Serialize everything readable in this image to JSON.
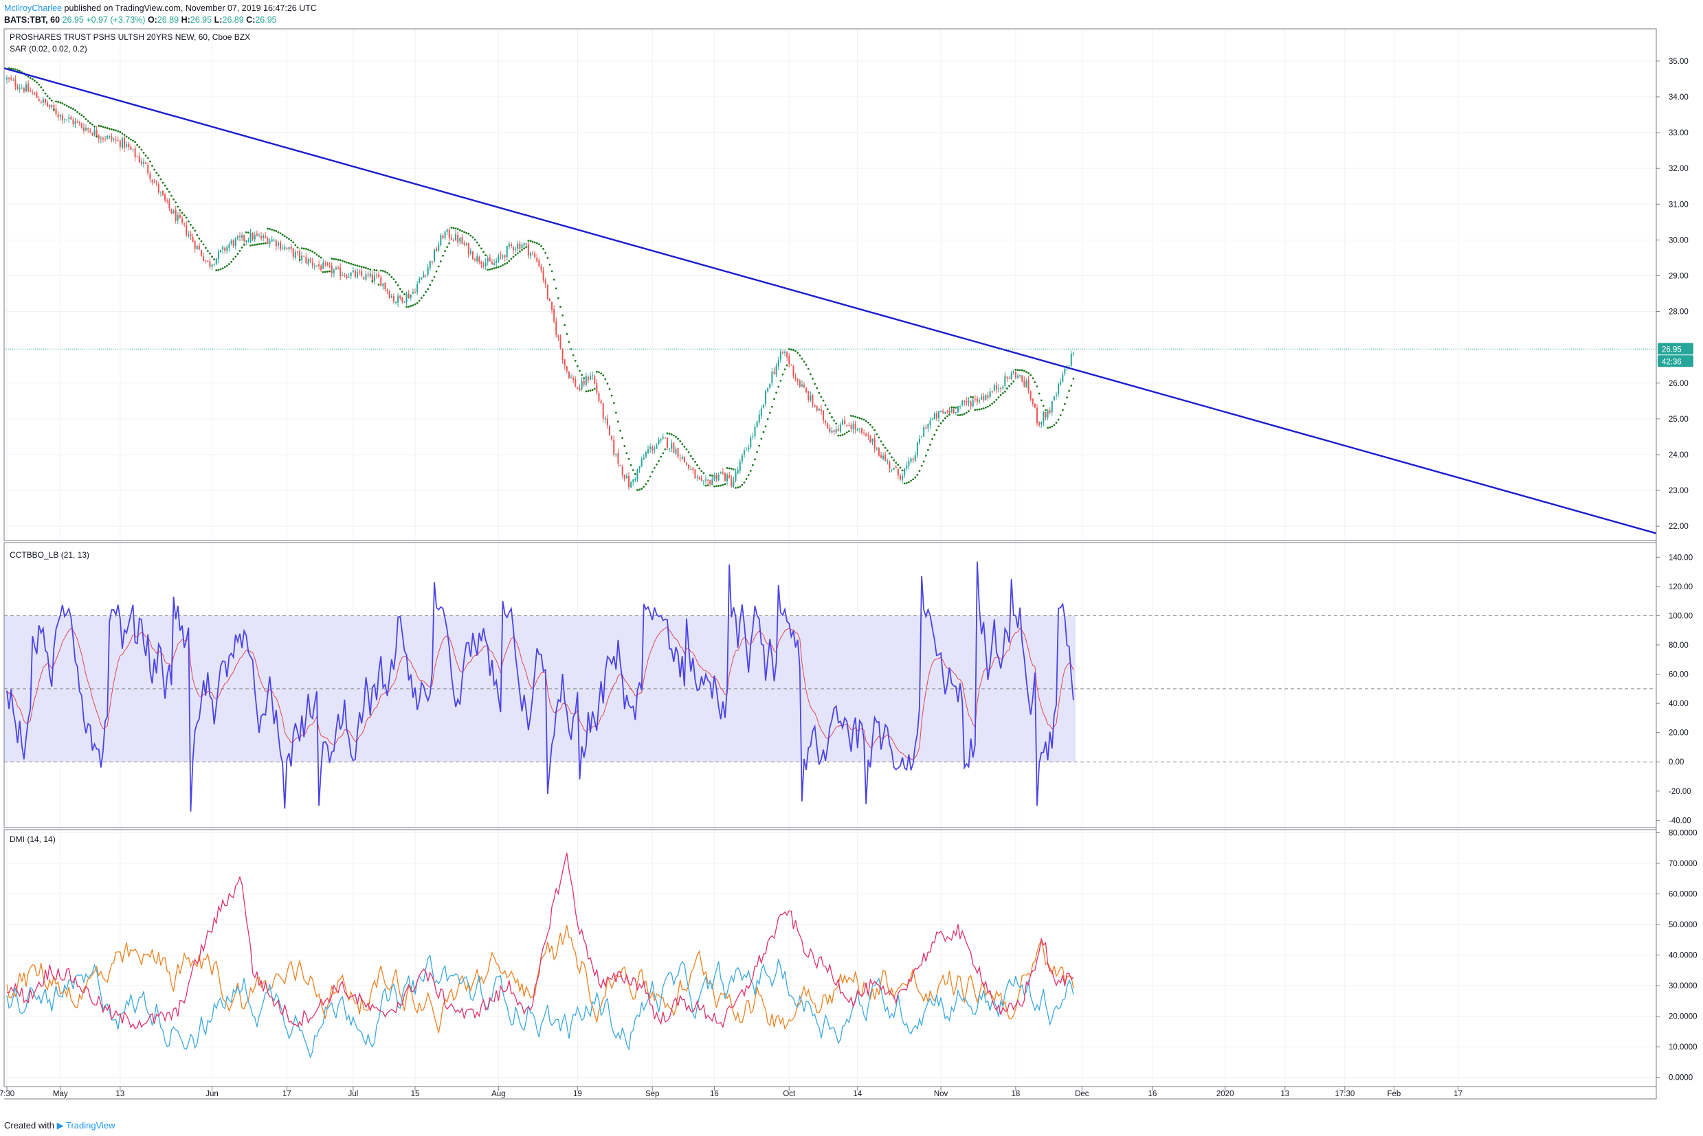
{
  "header": {
    "author": "McIlroyCharlee",
    "published_text": "published on TradingView.com, November 07, 2019 16:47:26 UTC",
    "symbol": "BATS:TBT, 60",
    "last": "26.95",
    "change": "+0.97 (+3.73%)",
    "open_label": "O:",
    "open": "26.89",
    "high_label": "H:",
    "high": "26.95",
    "low_label": "L:",
    "low": "26.89",
    "close_label": "C:",
    "close": "26.95"
  },
  "footer": {
    "created_with": "Created with",
    "brand": "TradingView"
  },
  "colors": {
    "up": "#26a69a",
    "down": "#ef5350",
    "sar": "#1b7a1b",
    "trendline": "#1a1ccf",
    "cc_main": "#4b43e8",
    "cc_signal": "#e04850",
    "band_fill": "#e4e4fb",
    "dmi_plus": "#3aa8e0",
    "dmi_minus": "#f08020",
    "adx": "#e0306a",
    "price_label_bg": "#26a69a",
    "grid": "#eef1f6",
    "border": "#787b86"
  },
  "chart_data": [
    {
      "type": "candlestick",
      "title": "PROSHARES TRUST PSHS ULTSH 20YRS NEW, 60, Cboe BZX",
      "indicator_label": "SAR (0.02, 0.02, 0.2)",
      "price_anchors": [
        [
          0,
          34.5
        ],
        [
          10,
          34.2
        ],
        [
          25,
          33.5
        ],
        [
          35,
          33.2
        ],
        [
          45,
          32.9
        ],
        [
          55,
          32.7
        ],
        [
          65,
          32.1
        ],
        [
          75,
          31.0
        ],
        [
          85,
          30.2
        ],
        [
          95,
          29.3
        ],
        [
          105,
          29.9
        ],
        [
          115,
          30.1
        ],
        [
          125,
          30.0
        ],
        [
          135,
          29.6
        ],
        [
          145,
          29.3
        ],
        [
          155,
          29.1
        ],
        [
          165,
          29.0
        ],
        [
          175,
          28.9
        ],
        [
          182,
          28.3
        ],
        [
          190,
          28.5
        ],
        [
          198,
          29.3
        ],
        [
          205,
          30.2
        ],
        [
          212,
          30.0
        ],
        [
          220,
          29.5
        ],
        [
          228,
          29.3
        ],
        [
          236,
          29.8
        ],
        [
          242,
          29.9
        ],
        [
          250,
          29.3
        ],
        [
          256,
          27.8
        ],
        [
          262,
          26.4
        ],
        [
          268,
          25.8
        ],
        [
          274,
          26.3
        ],
        [
          279,
          25.2
        ],
        [
          285,
          24.0
        ],
        [
          292,
          23.1
        ],
        [
          300,
          24.1
        ],
        [
          308,
          24.4
        ],
        [
          314,
          24.1
        ],
        [
          320,
          23.6
        ],
        [
          326,
          23.1
        ],
        [
          334,
          23.5
        ],
        [
          340,
          23.2
        ],
        [
          346,
          24.1
        ],
        [
          352,
          24.9
        ],
        [
          358,
          26.2
        ],
        [
          364,
          26.9
        ],
        [
          370,
          26.1
        ],
        [
          378,
          25.4
        ],
        [
          386,
          24.7
        ],
        [
          394,
          24.9
        ],
        [
          400,
          24.6
        ],
        [
          406,
          24.3
        ],
        [
          412,
          23.8
        ],
        [
          418,
          23.4
        ],
        [
          424,
          23.8
        ],
        [
          430,
          24.8
        ],
        [
          436,
          25.1
        ],
        [
          444,
          25.3
        ],
        [
          452,
          25.5
        ],
        [
          460,
          25.7
        ],
        [
          466,
          26.0
        ],
        [
          472,
          26.3
        ],
        [
          478,
          25.9
        ],
        [
          483,
          24.9
        ],
        [
          489,
          25.3
        ],
        [
          494,
          26.1
        ],
        [
          500,
          26.95
        ]
      ],
      "n_bars": 500,
      "trendline": {
        "from": [
          "Apr 30",
          34.8
        ],
        "to": [
          "Feb 20",
          21.8
        ]
      },
      "last_price_label": "26.95",
      "countdown_label": "42:36",
      "yticks": [
        "35.00",
        "34.00",
        "33.00",
        "32.00",
        "31.00",
        "30.00",
        "29.00",
        "28.00",
        "26.00",
        "25.00",
        "24.00",
        "23.00",
        "22.00"
      ],
      "ylim": [
        21.6,
        35.9
      ]
    },
    {
      "type": "line",
      "title": "CCTBBO_LB (21, 13)",
      "series": [
        {
          "role": "main"
        },
        {
          "role": "signal"
        }
      ],
      "band": [
        0,
        100
      ],
      "midline": 50,
      "spikes": [
        [
          12,
          86
        ],
        [
          22,
          78
        ],
        [
          48,
          96
        ],
        [
          78,
          113
        ],
        [
          86,
          -34
        ],
        [
          130,
          -32
        ],
        [
          146,
          -30
        ],
        [
          183,
          99
        ],
        [
          200,
          123
        ],
        [
          232,
          110
        ],
        [
          253,
          -22
        ],
        [
          268,
          -12
        ],
        [
          298,
          108
        ],
        [
          318,
          98
        ],
        [
          338,
          135
        ],
        [
          361,
          121
        ],
        [
          362,
          102
        ],
        [
          372,
          -27
        ],
        [
          402,
          -29
        ],
        [
          428,
          127
        ],
        [
          448,
          -4
        ],
        [
          454,
          137
        ],
        [
          470,
          125
        ],
        [
          482,
          -30
        ],
        [
          492,
          105
        ]
      ],
      "yticks": [
        "140.00",
        "120.00",
        "100.00",
        "80.00",
        "60.00",
        "40.00",
        "20.00",
        "0.00",
        "-20.00",
        "-40.00"
      ],
      "ylim": [
        -45,
        150
      ]
    },
    {
      "type": "line",
      "title": "DMI (14, 14)",
      "series": [
        {
          "role": "plus_di"
        },
        {
          "role": "minus_di"
        },
        {
          "role": "adx"
        }
      ],
      "adx_anchors": [
        [
          0,
          30
        ],
        [
          10,
          26
        ],
        [
          20,
          35
        ],
        [
          30,
          33
        ],
        [
          40,
          26
        ],
        [
          50,
          20
        ],
        [
          60,
          18
        ],
        [
          70,
          19
        ],
        [
          80,
          21
        ],
        [
          90,
          40
        ],
        [
          100,
          55
        ],
        [
          110,
          65
        ],
        [
          115,
          35
        ],
        [
          125,
          25
        ],
        [
          135,
          18
        ],
        [
          145,
          22
        ],
        [
          155,
          30
        ],
        [
          165,
          25
        ],
        [
          175,
          20
        ],
        [
          185,
          25
        ],
        [
          195,
          35
        ],
        [
          205,
          25
        ],
        [
          215,
          20
        ],
        [
          225,
          24
        ],
        [
          235,
          30
        ],
        [
          245,
          20
        ],
        [
          255,
          55
        ],
        [
          262,
          72
        ],
        [
          268,
          48
        ],
        [
          278,
          30
        ],
        [
          288,
          33
        ],
        [
          298,
          30
        ],
        [
          305,
          18
        ],
        [
          315,
          25
        ],
        [
          325,
          22
        ],
        [
          335,
          18
        ],
        [
          345,
          28
        ],
        [
          355,
          42
        ],
        [
          365,
          55
        ],
        [
          375,
          40
        ],
        [
          385,
          35
        ],
        [
          395,
          25
        ],
        [
          405,
          30
        ],
        [
          415,
          25
        ],
        [
          425,
          35
        ],
        [
          435,
          45
        ],
        [
          445,
          48
        ],
        [
          455,
          35
        ],
        [
          465,
          20
        ],
        [
          475,
          25
        ],
        [
          485,
          45
        ],
        [
          490,
          30
        ],
        [
          500,
          34
        ]
      ],
      "yticks": [
        "80.0000",
        "70.0000",
        "60.0000",
        "50.0000",
        "40.0000",
        "30.0000",
        "20.0000",
        "10.0000",
        "0.0000"
      ],
      "ylim": [
        -3,
        81
      ]
    }
  ],
  "x_axis": {
    "labels": [
      "7:30",
      "May",
      "13",
      "Jun",
      "17",
      "Jul",
      "15",
      "Aug",
      "19",
      "Sep",
      "16",
      "Oct",
      "14",
      "Nov",
      "18",
      "Dec",
      "16",
      "2020",
      "13",
      "17:30",
      "Feb",
      "17"
    ],
    "bar_index": [
      0,
      25,
      53,
      96,
      131,
      162,
      191,
      230,
      267,
      302,
      331,
      366,
      398,
      437,
      472,
      503,
      536,
      570,
      598,
      626,
      649,
      679
    ]
  }
}
